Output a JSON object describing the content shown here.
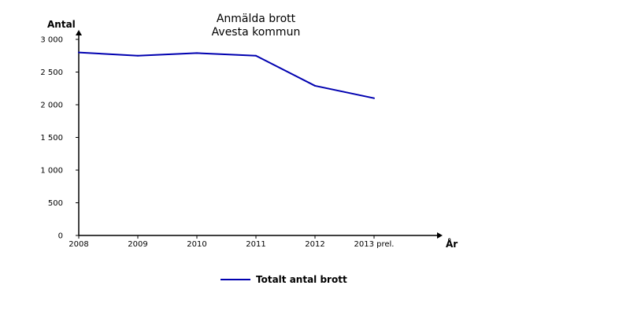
{
  "colors": {
    "series": "#0000b0",
    "axis": "#000000"
  },
  "chart_data": {
    "type": "line",
    "title": [
      "Anmälda brott",
      "Avesta kommun"
    ],
    "ylabel": "Antal",
    "xlabel": "År",
    "categories": [
      "2008",
      "2009",
      "2010",
      "2011",
      "2012",
      "2013 prel."
    ],
    "ylim": [
      0,
      3000
    ],
    "yticks": [
      0,
      500,
      1000,
      1500,
      2000,
      2500,
      3000
    ],
    "ytick_labels": [
      "0",
      "500",
      "1 000",
      "1 500",
      "2 000",
      "2 500",
      "3 000"
    ],
    "grid": false,
    "legend_position": "bottom-center",
    "series": [
      {
        "name": "Totalt antal brott",
        "values": [
          2800,
          2750,
          2790,
          2750,
          2290,
          2100
        ]
      }
    ]
  }
}
